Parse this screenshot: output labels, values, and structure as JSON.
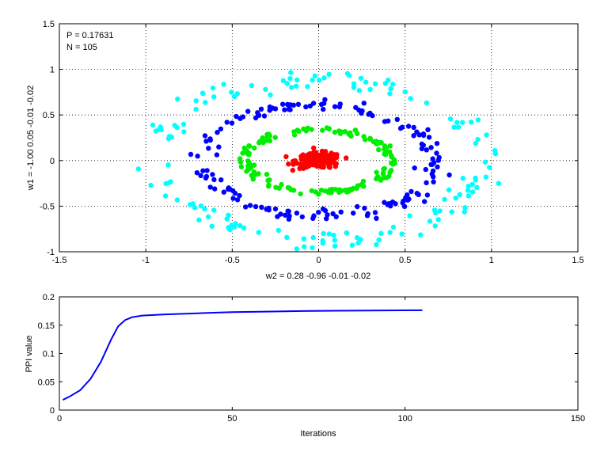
{
  "chart_data": [
    {
      "type": "scatter",
      "title": "",
      "xlabel": "w2 = 0.28  -0.96  -0.01  -0.02",
      "ylabel": "w1 = -1.00  0.05  -0.01  -0.02",
      "xlim": [
        -1.5,
        1.5
      ],
      "ylim": [
        -1,
        1.5
      ],
      "xticks": [
        "-1.5",
        "-1",
        "-0.5",
        "0",
        "0.5",
        "1",
        "1.5"
      ],
      "yticks": [
        "-1",
        "-0.5",
        "0",
        "0.5",
        "1",
        "1.5"
      ],
      "grid": true,
      "annotations": [
        "P = 0.17631",
        "N = 105"
      ],
      "series": [
        {
          "color": "#00ffff",
          "shape": "ellipse-ring",
          "center": [
            0,
            0
          ],
          "radius_x": 0.95,
          "radius_y": 0.88,
          "tilt_deg": -15,
          "spread": 0.06,
          "count": 150
        },
        {
          "color": "#0000ff",
          "shape": "ellipse-ring",
          "center": [
            0,
            0
          ],
          "radius_x": 0.68,
          "radius_y": 0.6,
          "tilt_deg": -12,
          "spread": 0.05,
          "count": 160
        },
        {
          "color": "#00ee00",
          "shape": "ellipse-ring",
          "center": [
            0,
            0
          ],
          "radius_x": 0.42,
          "radius_y": 0.34,
          "tilt_deg": -5,
          "spread": 0.05,
          "count": 150
        },
        {
          "color": "#ff0000",
          "shape": "blob",
          "center": [
            0,
            0
          ],
          "radius_x": 0.12,
          "radius_y": 0.07,
          "spread": 0.04,
          "count": 170
        }
      ]
    },
    {
      "type": "line",
      "title": "",
      "xlabel": "Iterations",
      "ylabel": "PPI value",
      "xlim": [
        0,
        150
      ],
      "ylim": [
        0,
        0.2
      ],
      "xticks": [
        "0",
        "50",
        "100",
        "150"
      ],
      "yticks": [
        "0",
        "0.05",
        "0.1",
        "0.15",
        "0.2"
      ],
      "grid": false,
      "series": [
        {
          "color": "#0000ff",
          "x": [
            1,
            3,
            6,
            9,
            12,
            15,
            17,
            19,
            21,
            24,
            30,
            40,
            50,
            60,
            70,
            80,
            90,
            100,
            105
          ],
          "y": [
            0.018,
            0.024,
            0.035,
            0.055,
            0.085,
            0.125,
            0.148,
            0.159,
            0.164,
            0.167,
            0.169,
            0.171,
            0.173,
            0.174,
            0.175,
            0.1755,
            0.176,
            0.1762,
            0.1763
          ]
        }
      ]
    }
  ]
}
